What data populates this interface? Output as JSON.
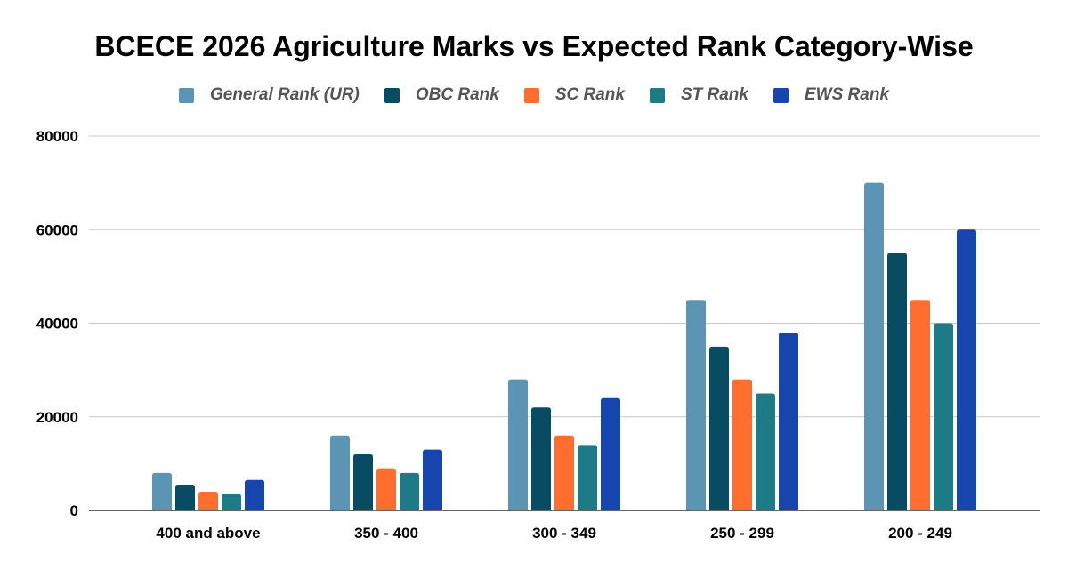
{
  "chart_data": {
    "type": "bar",
    "title": "BCECE 2026 Agriculture Marks vs Expected Rank Category-Wise",
    "xlabel": "",
    "ylabel": "",
    "categories": [
      "400 and above",
      "350 - 400",
      "300 - 349",
      "250 - 299",
      "200 - 249"
    ],
    "series": [
      {
        "name": "General Rank (UR)",
        "color": "#5b95b3",
        "values": [
          8000,
          16000,
          28000,
          45000,
          70000
        ]
      },
      {
        "name": "OBC Rank",
        "color": "#084b63",
        "values": [
          5500,
          12000,
          22000,
          35000,
          55000
        ]
      },
      {
        "name": "SC Rank",
        "color": "#ff6d2f",
        "values": [
          4000,
          9000,
          16000,
          28000,
          45000
        ]
      },
      {
        "name": "ST Rank",
        "color": "#1e7a85",
        "values": [
          3500,
          8000,
          14000,
          25000,
          40000
        ]
      },
      {
        "name": "EWS Rank",
        "color": "#1545ad",
        "values": [
          6500,
          13000,
          24000,
          38000,
          60000
        ]
      }
    ],
    "ylim": [
      0,
      80000
    ],
    "yticks": [
      "0",
      "20000",
      "40000",
      "60000",
      "80000"
    ],
    "grid": true,
    "legend": "top-center"
  }
}
